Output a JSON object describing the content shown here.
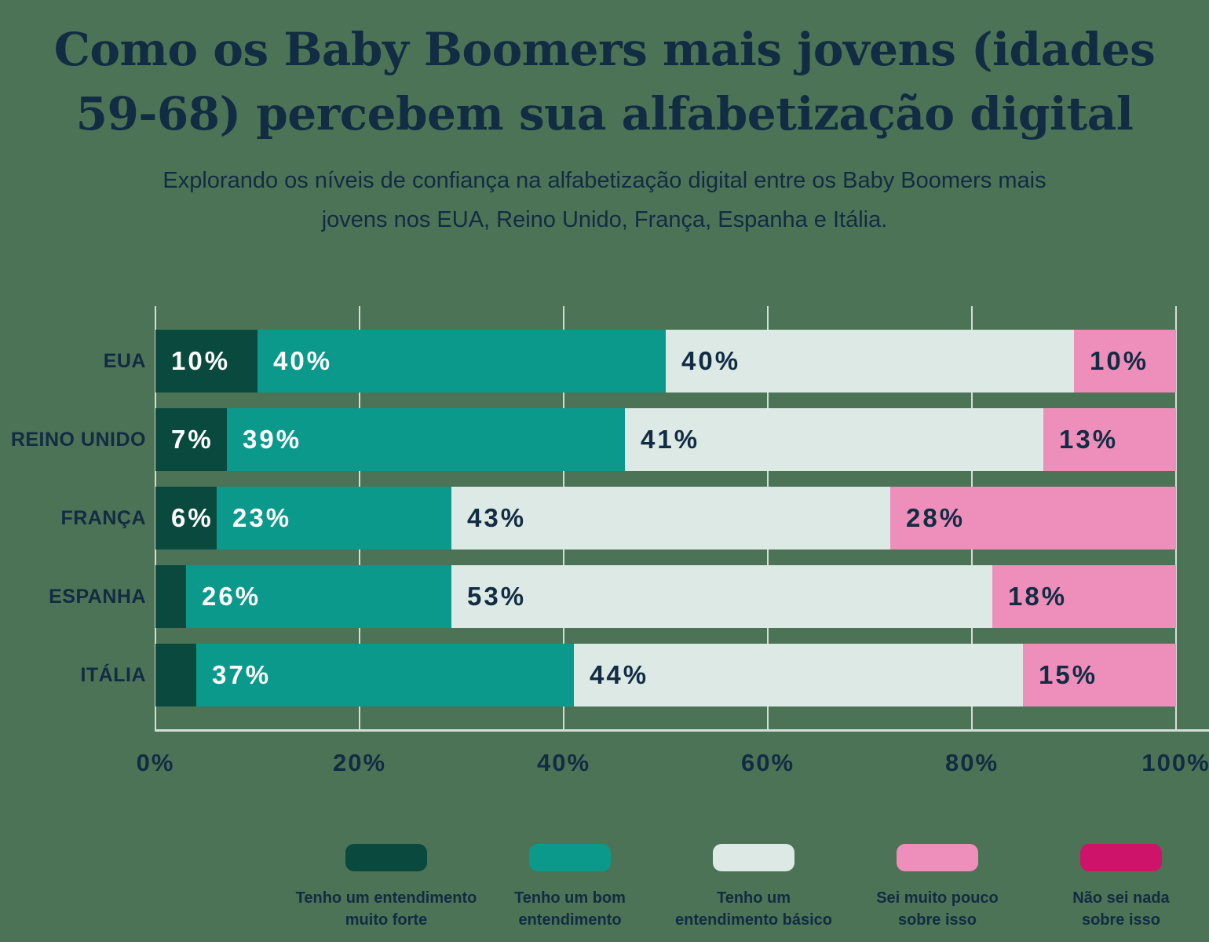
{
  "header": {
    "title": "Como os Baby Boomers mais jovens (idades 59-68) percebem sua alfabetização digital",
    "subtitle": "Explorando os níveis de confiança na alfabetização digital entre os Baby Boomers mais jovens nos EUA, Reino Unido, França, Espanha e Itália."
  },
  "colors": {
    "background": "#4C7355",
    "text": "#112C43",
    "grid": "#D4DDD6",
    "white_label": "#FFFFFF"
  },
  "chart_data": {
    "type": "bar",
    "orientation": "horizontal_stacked",
    "unit": "%",
    "title": "Como os Baby Boomers mais jovens (idades 59-68) percebem sua alfabetização digital",
    "categories": [
      "EUA",
      "REINO UNIDO",
      "FRANÇA",
      "ESPANHA",
      "ITÁLIA"
    ],
    "series": [
      {
        "name": "Tenho um entendimento muito forte",
        "name_lines": [
          "Tenho um entendimento",
          "muito forte"
        ],
        "color": "#0A4A3E",
        "label_color": "#FFFFFF",
        "values": [
          10,
          7,
          6,
          3,
          4
        ],
        "value_labels": [
          "10%",
          "7%",
          "6%",
          "",
          ""
        ]
      },
      {
        "name": "Tenho um bom entendimento",
        "name_lines": [
          "Tenho um bom",
          "entendimento"
        ],
        "color": "#0A998B",
        "label_color": "#FFFFFF",
        "values": [
          40,
          39,
          23,
          26,
          37
        ],
        "value_labels": [
          "40%",
          "39%",
          "23%",
          "26%",
          "37%"
        ]
      },
      {
        "name": "Tenho um entendimento básico",
        "name_lines": [
          "Tenho um",
          "entendimento básico"
        ],
        "color": "#DCE9E5",
        "label_color": "#112C43",
        "values": [
          40,
          41,
          43,
          53,
          44
        ],
        "value_labels": [
          "40%",
          "41%",
          "43%",
          "53%",
          "44%"
        ]
      },
      {
        "name": "Sei muito pouco sobre isso",
        "name_lines": [
          "Sei muito pouco",
          "sobre isso"
        ],
        "color": "#EE8FBB",
        "label_color": "#112C43",
        "values": [
          10,
          13,
          28,
          18,
          15
        ],
        "value_labels": [
          "10%",
          "13%",
          "28%",
          "18%",
          "15%"
        ]
      },
      {
        "name": "Não sei nada sobre isso",
        "name_lines": [
          "Não sei nada",
          "sobre isso"
        ],
        "color": "#CE146A",
        "label_color": "#FFFFFF",
        "values": [
          0,
          0,
          0,
          0,
          0
        ],
        "value_labels": [
          "",
          "",
          "",
          "",
          ""
        ]
      }
    ],
    "x_ticks": [
      "0%",
      "20%",
      "40%",
      "60%",
      "80%",
      "100%"
    ],
    "xlim": [
      0,
      100
    ],
    "grid": true,
    "legend_position": "bottom"
  }
}
